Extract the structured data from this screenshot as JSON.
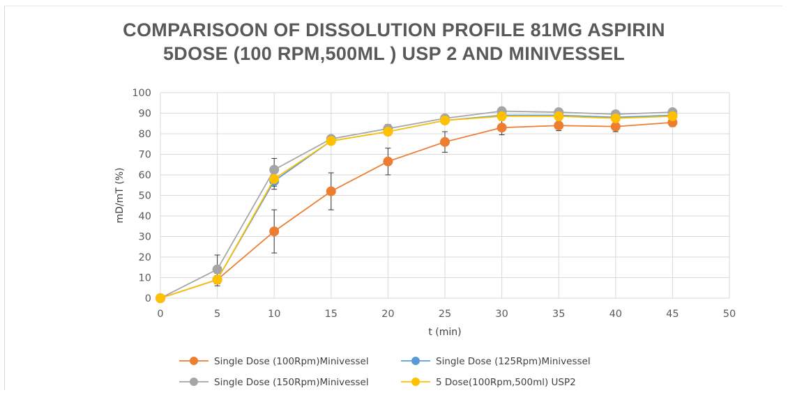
{
  "chart_data": {
    "type": "line",
    "title_line1": "COMPARISOON OF DISSOLUTION PROFILE 81MG ASPIRIN",
    "title_line2": "5DOSE (100 RPM,500ML ) USP 2  AND  MINIVESSEL",
    "xlabel": "t (min)",
    "ylabel": "mD/mT (%)",
    "xlim": [
      0,
      50
    ],
    "ylim": [
      0,
      100
    ],
    "x_ticks": [
      "0",
      "5",
      "10",
      "15",
      "20",
      "25",
      "30",
      "35",
      "40",
      "45",
      "50"
    ],
    "y_ticks": [
      "0",
      "10",
      "20",
      "30",
      "40",
      "50",
      "60",
      "70",
      "80",
      "90",
      "100"
    ],
    "grid": true,
    "legend_position": "bottom",
    "x": [
      0,
      5,
      10,
      15,
      20,
      25,
      30,
      35,
      40,
      45
    ],
    "series": [
      {
        "name": "Single Dose (100Rpm)Minivessel",
        "color": "#ED7D31",
        "values": [
          0,
          9,
          32.5,
          52,
          66.5,
          76,
          83,
          84,
          83.5,
          85.5
        ],
        "errors": [
          0,
          3,
          10.5,
          9,
          6.5,
          5,
          3.5,
          2.5,
          2.5,
          2
        ]
      },
      {
        "name": "Single Dose (125Rpm)Minivessel",
        "color": "#5B9BD5",
        "values": [
          0,
          9,
          57,
          76.5,
          81,
          86.5,
          89,
          89,
          88,
          89
        ],
        "errors": [
          0,
          2,
          4,
          1.5,
          1.5,
          1,
          1,
          1,
          1,
          1
        ]
      },
      {
        "name": "Single Dose (150Rpm)Minivessel",
        "color": "#A5A5A5",
        "values": [
          0,
          14,
          62.5,
          77.5,
          82.5,
          87.5,
          91,
          90.5,
          89.5,
          90.5
        ],
        "errors": [
          0,
          7,
          5.5,
          1.5,
          2,
          1.5,
          1,
          1,
          1,
          1
        ]
      },
      {
        "name": "5 Dose(100Rpm,500ml) USP2",
        "color": "#FFC000",
        "values": [
          0,
          9,
          58,
          76.5,
          81,
          86.5,
          88.5,
          88.5,
          87.5,
          88.5
        ],
        "errors": [
          0,
          2,
          3.5,
          1.5,
          1.5,
          1,
          1,
          1,
          1,
          1
        ]
      }
    ]
  }
}
